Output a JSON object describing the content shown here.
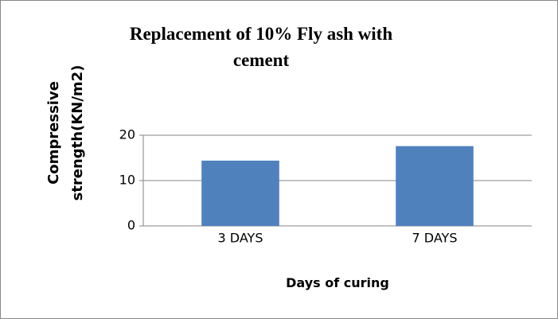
{
  "chart_data": {
    "type": "bar",
    "title": "Replacement of 10% Fly ash with cement",
    "ylabel": "Compressive strength(KN/m2)",
    "xlabel": "Days of curing",
    "categories": [
      "3 DAYS",
      "7 DAYS"
    ],
    "values": [
      14.4,
      17.6
    ],
    "color": "#4f81bd",
    "ylim": [
      0,
      20
    ],
    "yticks": [
      0,
      10,
      20
    ],
    "grid": true
  }
}
